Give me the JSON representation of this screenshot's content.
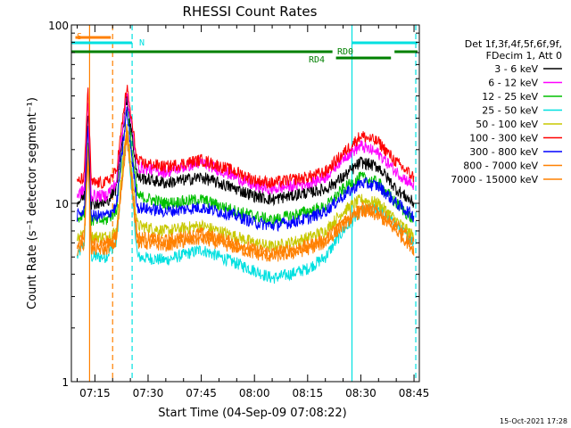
{
  "chart_data": {
    "type": "line",
    "title": "RHESSI Count Rates",
    "xlabel": "Start Time (04-Sep-09 07:08:22)",
    "ylabel": "Count Rate (s⁻¹ detector segment⁻¹)",
    "y_scale": "log",
    "ylim": [
      1,
      100
    ],
    "xlim": [
      "07:08:22",
      "08:46:30"
    ],
    "x_ticks": [
      "07:15",
      "07:30",
      "07:45",
      "08:00",
      "08:15",
      "08:30",
      "08:45"
    ],
    "y_tick_labels": [
      "1",
      "10",
      "100"
    ],
    "legend_header": [
      "Det 1f,3f,4f,5f,6f,9f,",
      "FDecim 1, Att 0"
    ],
    "legend_placement": "right",
    "timestamp": "15-Oct-2021 17:28",
    "markers": [
      {
        "label": "S",
        "color": "#ff8000",
        "from": "07:09:30",
        "to": "07:19:30"
      },
      {
        "label": "N",
        "color": "#00e0e0",
        "from": "07:08:22",
        "to": "07:25:30"
      },
      {
        "label": "RD0",
        "color": "#008000",
        "from": "07:08:22",
        "to": "08:22:00"
      },
      {
        "label": "RD4",
        "color": "#008000",
        "from": "08:23:00",
        "to": "08:38:30"
      }
    ],
    "vertical_lines": [
      {
        "time": "07:13:30",
        "color": "#ff8000",
        "style": "solid"
      },
      {
        "time": "07:20:00",
        "color": "#ff8000",
        "style": "dashed"
      },
      {
        "time": "07:25:30",
        "color": "#00e0e0",
        "style": "dashed"
      },
      {
        "time": "08:27:30",
        "color": "#00e0e0",
        "style": "solid"
      },
      {
        "time": "08:45:30",
        "color": "#00e0e0",
        "style": "dashed"
      }
    ],
    "x": [
      "07:10",
      "07:12",
      "07:13",
      "07:14",
      "07:18",
      "07:21",
      "07:24",
      "07:27",
      "07:35",
      "07:45",
      "07:55",
      "08:00",
      "08:05",
      "08:10",
      "08:15",
      "08:20",
      "08:25",
      "08:30",
      "08:35",
      "08:40",
      "08:45"
    ],
    "series": [
      {
        "name": "3 - 6 keV",
        "color": "#000000",
        "values": [
          10,
          11,
          35,
          10,
          10,
          12,
          40,
          14,
          13,
          14,
          12,
          11,
          10.5,
          11,
          11.5,
          12,
          14,
          17,
          16,
          12,
          10
        ]
      },
      {
        "name": "6 - 12 keV",
        "color": "#ff00ff",
        "values": [
          11,
          12,
          38,
          11,
          11,
          13,
          42,
          16,
          15,
          17,
          14,
          12.5,
          12,
          12.5,
          13,
          14,
          18,
          21,
          19,
          15,
          12.5
        ]
      },
      {
        "name": "12 - 25 keV",
        "color": "#00c000",
        "values": [
          8,
          9,
          30,
          8,
          8,
          9,
          35,
          11,
          10,
          10.5,
          9,
          8.5,
          8,
          8.5,
          9,
          9.5,
          12,
          14,
          13,
          10,
          8
        ]
      },
      {
        "name": "25 - 50 keV",
        "color": "#00e0e0",
        "values": [
          5,
          6,
          20,
          5,
          5,
          6,
          25,
          5,
          4.8,
          5.5,
          4.6,
          4.2,
          3.8,
          4,
          4.3,
          5,
          7,
          9,
          9.5,
          7.5,
          6
        ]
      },
      {
        "name": "50 - 100 keV",
        "color": "#c8c800",
        "values": [
          6.5,
          7,
          22,
          6.5,
          6.5,
          7,
          28,
          7.5,
          7,
          7.5,
          6.5,
          6,
          5.7,
          6,
          6.4,
          7,
          9,
          10.5,
          10,
          8,
          6.5
        ]
      },
      {
        "name": "100 - 300 keV",
        "color": "#ff0000",
        "values": [
          13,
          14,
          45,
          13,
          13,
          15,
          45,
          17,
          16,
          17.5,
          15,
          13.5,
          13,
          13.5,
          14,
          15,
          19,
          24,
          22,
          17,
          14
        ]
      },
      {
        "name": "300 - 800 keV",
        "color": "#0000ff",
        "values": [
          8.5,
          9,
          28,
          8.5,
          8.5,
          9.5,
          33,
          9.5,
          9,
          9.5,
          8.5,
          7.8,
          7.5,
          7.8,
          8.2,
          9,
          11,
          13,
          12.5,
          10,
          8.5
        ]
      },
      {
        "name": "800 - 7000 keV",
        "color": "#ff8000",
        "values": [
          6,
          6.5,
          20,
          6,
          6,
          6.5,
          26,
          6.5,
          6.2,
          6.8,
          6,
          5.5,
          5.3,
          5.5,
          5.8,
          6.3,
          8,
          9.5,
          9,
          7.5,
          6
        ]
      },
      {
        "name": "7000 - 15000 keV",
        "color": "#ff8000",
        "values": [
          5.5,
          6,
          18,
          5.5,
          5.5,
          6,
          24,
          6,
          5.8,
          6.3,
          5.6,
          5.2,
          5,
          5.2,
          5.5,
          6,
          7.5,
          9,
          8.5,
          7,
          5.5
        ]
      }
    ]
  }
}
